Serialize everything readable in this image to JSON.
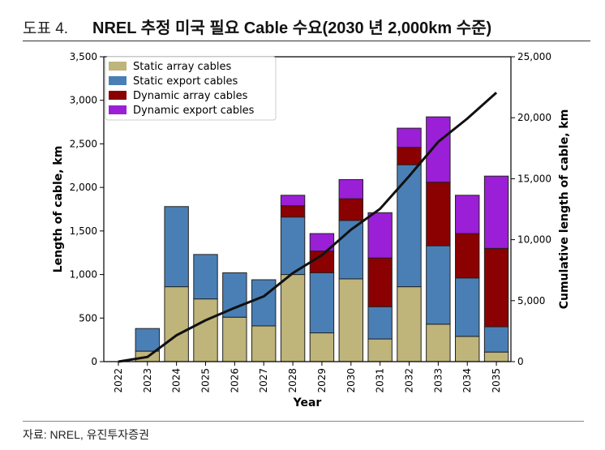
{
  "header": {
    "fig_label": "도표 4.",
    "title": "NREL 추정 미국 필요 Cable 수요(2030 년 2,000km 수준)"
  },
  "source": "자료: NREL, 유진투자증권",
  "colors": {
    "static_array": "#bfb47a",
    "static_export": "#4a7fb5",
    "dynamic_array": "#8b0000",
    "dynamic_export": "#9b1fd6",
    "cumulative_line": "#111111"
  },
  "chart_data": {
    "type": "bar",
    "stacked": true,
    "xlabel": "Year",
    "ylabel": "Length of cable, km",
    "y2label": "Cumulative length of cable, km",
    "ylim": [
      0,
      3500
    ],
    "y2lim": [
      0,
      25000
    ],
    "yticks": [
      "0",
      "500",
      "1,000",
      "1,500",
      "2,000",
      "2,500",
      "3,000",
      "3,500"
    ],
    "y2ticks": [
      "0",
      "5,000",
      "10,000",
      "15,000",
      "20,000",
      "25,000"
    ],
    "legend_position": "top-left",
    "grid": false,
    "categories": [
      "2022",
      "2023",
      "2024",
      "2025",
      "2026",
      "2027",
      "2028",
      "2029",
      "2030",
      "2031",
      "2032",
      "2033",
      "2034",
      "2035"
    ],
    "series": [
      {
        "name": "Static array cables",
        "color_key": "static_array",
        "values": [
          0,
          120,
          860,
          720,
          510,
          410,
          1000,
          330,
          950,
          260,
          860,
          430,
          290,
          110
        ]
      },
      {
        "name": "Static export cables",
        "color_key": "static_export",
        "values": [
          0,
          260,
          920,
          510,
          510,
          530,
          660,
          690,
          670,
          370,
          1400,
          900,
          670,
          290
        ]
      },
      {
        "name": "Dynamic array cables",
        "color_key": "dynamic_array",
        "values": [
          0,
          0,
          0,
          0,
          0,
          0,
          130,
          250,
          250,
          560,
          200,
          730,
          510,
          900
        ]
      },
      {
        "name": "Dynamic export cables",
        "color_key": "dynamic_export",
        "values": [
          0,
          0,
          0,
          0,
          0,
          0,
          120,
          200,
          220,
          520,
          220,
          750,
          440,
          830
        ]
      }
    ],
    "cumulative_line": {
      "axis": "right",
      "values": [
        0,
        380,
        2160,
        3390,
        4410,
        5350,
        7260,
        8730,
        10820,
        12530,
        15210,
        18020,
        19930,
        22060
      ]
    }
  }
}
